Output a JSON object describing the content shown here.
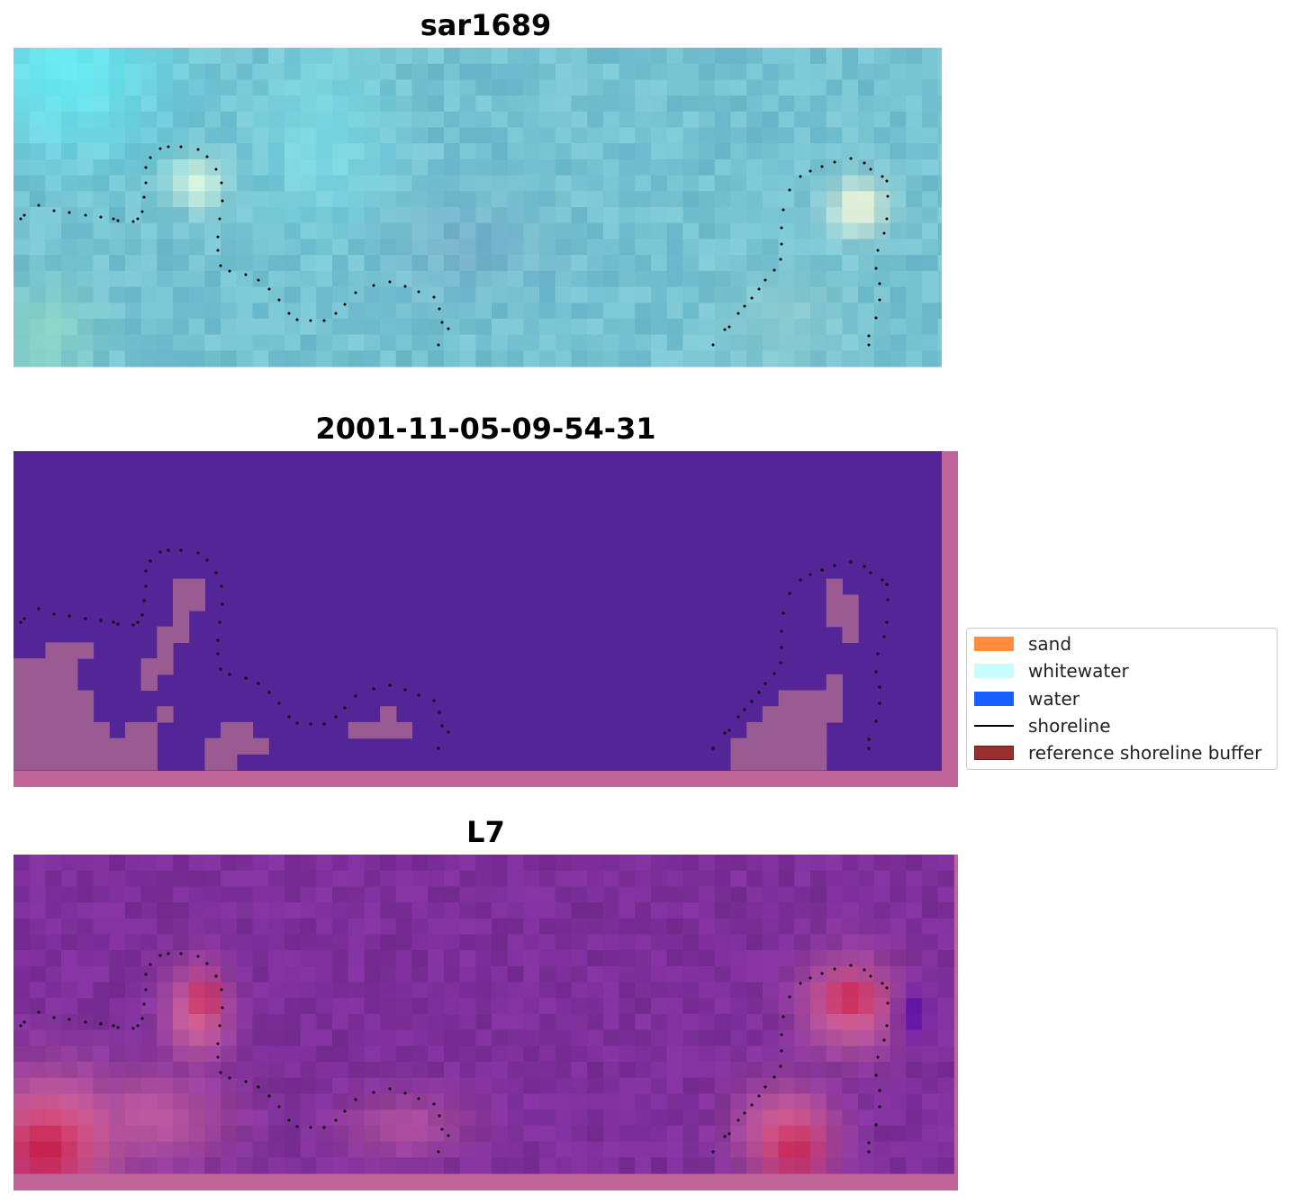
{
  "panels": [
    {
      "title": "sar1689"
    },
    {
      "title": "2001-11-05-09-54-31"
    },
    {
      "title": "L7"
    }
  ],
  "legend": {
    "items": [
      {
        "label": "sand",
        "color": "#ff8c3a",
        "kind": "patch"
      },
      {
        "label": "whitewater",
        "color": "#c8fdff",
        "kind": "patch"
      },
      {
        "label": "water",
        "color": "#1a5eff",
        "kind": "patch"
      },
      {
        "label": "shoreline",
        "color": "#000000",
        "kind": "line"
      },
      {
        "label": "reference shoreline buffer",
        "color": "#9a2f2f",
        "kind": "patch"
      }
    ]
  },
  "colors": {
    "rgb_base": "#7fbfcc",
    "classified_water": "#532596",
    "classified_sand_overlay": "#9a5a92",
    "buffer_overlay": "#c0649a",
    "mndwi_base": "#7e2f9c",
    "mndwi_high": "#c41844"
  }
}
